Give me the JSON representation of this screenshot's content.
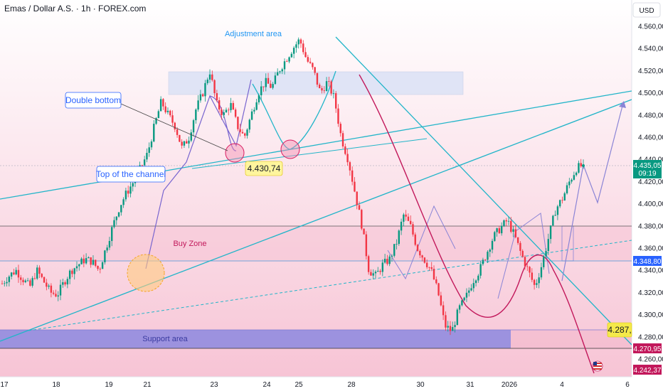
{
  "header": {
    "symbol_title": "Emas / Dollar A.S. · 1h · FOREX.com"
  },
  "axis": {
    "currency": "USD",
    "y_ticks": [
      {
        "value": 4560,
        "label": "4.560,00"
      },
      {
        "value": 4540,
        "label": "4.540,00"
      },
      {
        "value": 4520,
        "label": "4.520,00"
      },
      {
        "value": 4500,
        "label": "4.500,00"
      },
      {
        "value": 4480,
        "label": "4.480,00"
      },
      {
        "value": 4460,
        "label": "4.460,00"
      },
      {
        "value": 4440,
        "label": "4.440,00"
      },
      {
        "value": 4420,
        "label": "4.420,00"
      },
      {
        "value": 4400,
        "label": "4.400,00"
      },
      {
        "value": 4380,
        "label": "4.380,00"
      },
      {
        "value": 4360,
        "label": "4.360,00"
      },
      {
        "value": 4340,
        "label": "4.340,00"
      },
      {
        "value": 4320,
        "label": "4.320,00"
      },
      {
        "value": 4300,
        "label": "4.300,00"
      },
      {
        "value": 4280,
        "label": "4.280,00"
      },
      {
        "value": 4260,
        "label": "4.260,00"
      }
    ],
    "x_ticks": [
      "17",
      "18",
      "19",
      "21",
      "23",
      "24",
      "25",
      "28",
      "30",
      "31",
      "2026",
      "4",
      "6"
    ]
  },
  "price_tags": {
    "current": {
      "value": 4435.05,
      "label": "4.435,05",
      "countdown": "09:19",
      "color": "#089981"
    },
    "level_1": {
      "value": 4348.8,
      "label": "4.348,80",
      "color": "#2962ff"
    },
    "level_2": {
      "value": 4287,
      "label": "4.287,",
      "color": "#f5e94a"
    },
    "level_3": {
      "value": 4270.95,
      "label": "4.270,95",
      "color": "#c2185b"
    },
    "level_4": {
      "value": 4242.37,
      "label": "4.242,37",
      "color": "#c2185b"
    }
  },
  "annotations": {
    "adjustment_area": "Adjustment area",
    "double_bottom": "Double bottom",
    "top_of_channel": "Top of the channel",
    "price_label": "4.430,74",
    "buy_zone": "Buy Zone",
    "support_area": "Support area"
  },
  "chart_data": {
    "type": "candlestick",
    "title": "Emas / Dollar A.S. · 1h · FOREX.com",
    "ylabel": "USD",
    "ylim": [
      4235,
      4575
    ],
    "x_tick_labels": [
      "17",
      "18",
      "19",
      "21",
      "23",
      "24",
      "25",
      "28",
      "30",
      "31",
      "2026",
      "4",
      "6"
    ],
    "price_path_approx": [
      4328,
      4335,
      4340,
      4332,
      4325,
      4340,
      4330,
      4320,
      4318,
      4330,
      4340,
      4345,
      4350,
      4348,
      4340,
      4360,
      4380,
      4398,
      4410,
      4420,
      4432,
      4445,
      4470,
      4492,
      4480,
      4470,
      4450,
      4460,
      4485,
      4500,
      4520,
      4490,
      4480,
      4490,
      4470,
      4460,
      4480,
      4500,
      4510,
      4505,
      4520,
      4530,
      4540,
      4548,
      4530,
      4520,
      4500,
      4510,
      4495,
      4460,
      4440,
      4410,
      4380,
      4340,
      4335,
      4345,
      4350,
      4365,
      4390,
      4380,
      4360,
      4350,
      4340,
      4320,
      4290,
      4285,
      4305,
      4315,
      4330,
      4340,
      4355,
      4370,
      4378,
      4385,
      4372,
      4355,
      4340,
      4325,
      4345,
      4370,
      4395,
      4405,
      4420,
      4432,
      4435.05
    ],
    "levels": {
      "current": 4435.05,
      "pivot": 4348.8,
      "support": 4287,
      "low": 4270.95,
      "target_low": 4242.37,
      "annotated": 4430.74
    }
  },
  "colors": {
    "bull": "#089981",
    "bear": "#f23645",
    "channel": "#22b5c9",
    "projection": "#8a84d6",
    "curve": "#c2185b",
    "zone_pink": "#f8bbd0",
    "support_zone": "#7e7fe0",
    "adjust_zone": "#dde3f6"
  }
}
